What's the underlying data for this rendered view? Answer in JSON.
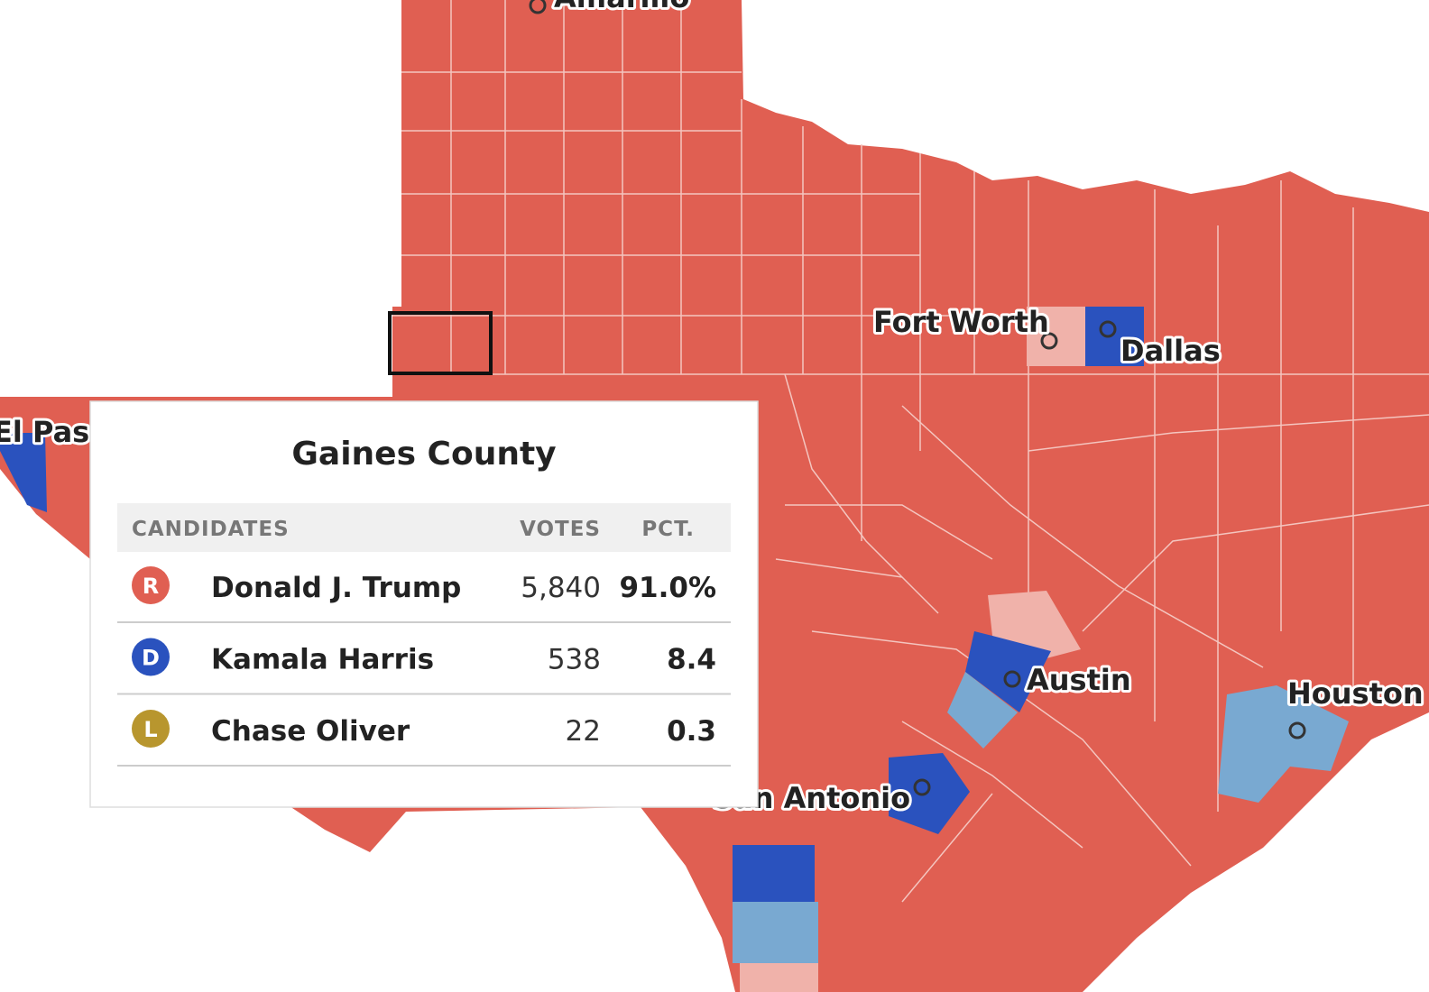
{
  "map": {
    "cities": [
      "Amarillo",
      "El Paso",
      "Fort Worth",
      "Dallas",
      "Austin",
      "Houston",
      "San Antonio"
    ]
  },
  "tooltip": {
    "title": "Gaines County",
    "headers": [
      "CANDIDATES",
      "VOTES",
      "PCT."
    ],
    "rows": [
      {
        "party": "R",
        "color": "#e05f52",
        "name": "Donald J. Trump",
        "votes": "5,840",
        "pct": "91.0%"
      },
      {
        "party": "D",
        "color": "#2a52be",
        "name": "Kamala Harris",
        "votes": "538",
        "pct": "8.4"
      },
      {
        "party": "L",
        "color": "#b8962e",
        "name": "Chase Oliver",
        "votes": "22",
        "pct": "0.3"
      }
    ]
  }
}
